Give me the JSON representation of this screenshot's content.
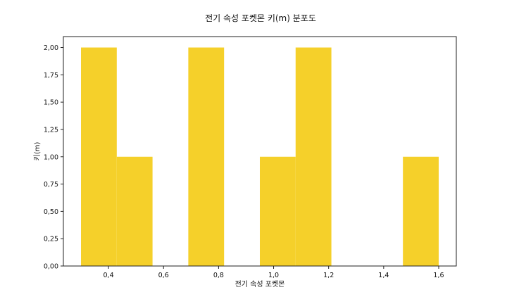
{
  "chart_data": {
    "type": "bar",
    "title": "전기 속성 포켓몬 키(m) 분포도",
    "xlabel": "전기 속성 포켓몬",
    "ylabel": "키(m)",
    "bar_color": "#f5d02a",
    "xlim": [
      0.236,
      1.664
    ],
    "ylim": [
      0,
      2.1
    ],
    "grid": false,
    "bin_edges": [
      0.3,
      0.43,
      0.56,
      0.69,
      0.82,
      0.95,
      1.08,
      1.21,
      1.34,
      1.47,
      1.6
    ],
    "values": [
      2,
      1,
      0,
      2,
      0,
      1,
      2,
      0,
      0,
      1
    ],
    "x_ticks": [
      {
        "value": 0.4,
        "label": "0,4"
      },
      {
        "value": 0.6,
        "label": "0,6"
      },
      {
        "value": 0.8,
        "label": "0,8"
      },
      {
        "value": 1.0,
        "label": "1,0"
      },
      {
        "value": 1.2,
        "label": "1,2"
      },
      {
        "value": 1.4,
        "label": "1,4"
      },
      {
        "value": 1.6,
        "label": "1,6"
      }
    ],
    "y_ticks": [
      {
        "value": 0.0,
        "label": "0,00"
      },
      {
        "value": 0.25,
        "label": "0,25"
      },
      {
        "value": 0.5,
        "label": "0,50"
      },
      {
        "value": 0.75,
        "label": "0,75"
      },
      {
        "value": 1.0,
        "label": "1,00"
      },
      {
        "value": 1.25,
        "label": "1,25"
      },
      {
        "value": 1.5,
        "label": "1,50"
      },
      {
        "value": 1.75,
        "label": "1,75"
      },
      {
        "value": 2.0,
        "label": "2,00"
      }
    ]
  }
}
